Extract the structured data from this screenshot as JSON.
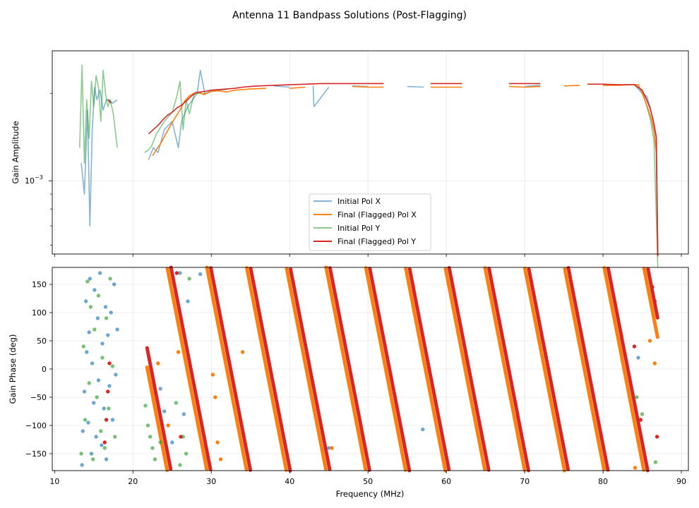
{
  "chart_data": {
    "title": "Antenna 11 Bandpass Solutions (Post-Flagging)",
    "type": "line",
    "colors": {
      "initial_x": "#1f77b4",
      "final_x": "#ff7f0e",
      "initial_y": "#2ca02c",
      "final_y": "#d62728"
    },
    "x_axis": {
      "label": "Frequency (MHz)",
      "range": [
        9.7,
        90.9
      ],
      "ticks": [
        10,
        20,
        30,
        40,
        50,
        60,
        70,
        80,
        90
      ],
      "tick_labels": [
        "10",
        "20",
        "30",
        "40",
        "50",
        "60",
        "70",
        "80",
        "90"
      ]
    },
    "amplitude_panel": {
      "ylabel": "Gain Amplitude",
      "yscale": "log",
      "ylim": [
        0.00056,
        0.0028
      ],
      "ytick_label": "10",
      "ytick_exponent": "−3",
      "legend_position": "lower-center",
      "series": [
        {
          "name": "Initial Pol X",
          "key": "initial_x",
          "alpha": 0.55,
          "x": [
            13.4,
            13.8,
            14.2,
            14.5,
            14.8,
            15.1,
            15.4,
            15.8,
            16.2,
            16.6,
            17.0,
            17.4,
            18.0,
            22.0,
            22.6,
            23.2,
            24.0,
            25.0,
            25.8,
            26.2,
            26.6,
            27.0,
            27.6,
            28.2,
            28.6,
            29.2,
            30.0,
            32.0,
            35.0,
            38.0,
            40.0,
            43.0,
            43.1,
            45.0,
            48.0,
            50.0,
            55.0,
            57.1,
            60.0,
            65.0,
            70.0,
            72.0,
            75.0,
            80.0,
            83.0,
            84.0,
            85.0,
            85.6,
            86.0,
            86.3,
            86.6,
            86.8,
            87.0
          ],
          "values": [
            0.00115,
            0.0009,
            0.00175,
            0.0007,
            0.0015,
            0.0021,
            0.0019,
            0.00205,
            0.00175,
            0.0019,
            0.0019,
            0.00185,
            0.0019,
            0.00118,
            0.0013,
            0.00125,
            0.0015,
            0.0016,
            0.0013,
            0.0016,
            0.0017,
            0.0018,
            0.0019,
            0.002,
            0.0024,
            0.00198,
            0.00205,
            0.00206,
            0.00212,
            0.00212,
            0.0021,
            0.00212,
            0.0018,
            0.0021,
            0.00212,
            0.00211,
            0.00211,
            0.0021,
            0.00212,
            0.00212,
            0.00211,
            0.00213,
            0.00213,
            0.00214,
            0.00214,
            0.00214,
            0.002,
            0.00195,
            0.0018,
            0.00165,
            0.0015,
            0.0014,
            0.00055
          ]
        },
        {
          "name": "Final (Flagged) Pol X",
          "key": "final_x",
          "alpha": 1.0,
          "x": [
            22.5,
            23.0,
            23.6,
            24.2,
            24.8,
            25.4,
            26.0,
            26.6,
            27.2,
            27.8,
            28.4,
            29.0,
            30.0,
            31.0,
            32.0,
            33.0,
            34.0,
            35.0,
            37.0,
            40.0,
            42.0,
            45.0,
            48.0,
            50.0,
            52.0,
            55.0,
            58.0,
            60.0,
            62.0,
            65.0,
            68.0,
            70.0,
            72.0,
            75.0,
            77.0,
            80.0,
            82.0,
            83.5,
            84.5,
            85.0,
            85.4,
            85.8,
            86.2,
            86.5,
            86.8,
            87.0
          ],
          "values": [
            0.00122,
            0.00128,
            0.00135,
            0.00145,
            0.00155,
            0.00165,
            0.00175,
            0.00188,
            0.00196,
            0.002,
            0.00202,
            0.00198,
            0.00203,
            0.00204,
            0.00202,
            0.00205,
            0.00206,
            0.00207,
            0.00208,
            0.00208,
            0.0021,
            0.00211,
            0.00211,
            0.0021,
            0.0021,
            0.00211,
            0.0021,
            0.0021,
            0.0021,
            0.0021,
            0.00211,
            0.0021,
            0.00211,
            0.00212,
            0.00213,
            0.00213,
            0.00213,
            0.00214,
            0.00214,
            0.002,
            0.00188,
            0.00175,
            0.00162,
            0.00148,
            0.00125,
            0.00055
          ]
        },
        {
          "name": "Initial Pol Y",
          "key": "initial_y",
          "alpha": 0.55,
          "x": [
            13.2,
            13.5,
            13.8,
            14.1,
            14.4,
            14.7,
            15.0,
            15.3,
            15.6,
            15.9,
            16.2,
            16.5,
            16.8,
            17.1,
            17.5,
            18.0,
            21.5,
            22.0,
            22.4,
            23.0,
            24.0,
            25.0,
            25.6,
            26.0,
            26.4,
            26.8,
            27.2,
            27.8,
            28.4,
            29.0,
            30.0,
            35.0,
            40.0,
            45.0,
            50.0,
            55.0,
            60.0,
            65.0,
            70.0,
            75.0,
            80.0,
            84.0,
            85.0,
            86.0,
            86.5,
            87.0
          ],
          "values": [
            0.0013,
            0.0025,
            0.00115,
            0.0019,
            0.0014,
            0.0022,
            0.0018,
            0.0023,
            0.0021,
            0.0016,
            0.0024,
            0.002,
            0.0018,
            0.0019,
            0.0017,
            0.0013,
            0.00125,
            0.00128,
            0.00132,
            0.00145,
            0.0016,
            0.00172,
            0.00195,
            0.0022,
            0.0015,
            0.0019,
            0.0017,
            0.00198,
            0.002,
            0.00199,
            0.00203,
            0.0021,
            0.00213,
            0.00214,
            0.00214,
            0.00214,
            0.00214,
            0.00214,
            0.00214,
            0.00214,
            0.00215,
            0.00215,
            0.00205,
            0.00165,
            0.00138,
            0.0005
          ]
        },
        {
          "name": "Final (Flagged) Pol Y",
          "key": "final_y",
          "alpha": 1.0,
          "x": [
            16.8,
            17.2,
            22.0,
            22.6,
            23.2,
            23.8,
            24.4,
            25.0,
            25.6,
            26.2,
            26.8,
            27.4,
            28.0,
            28.6,
            29.2,
            30.0,
            31.0,
            32.0,
            33.0,
            34.0,
            35.0,
            36.0,
            38.0,
            40.0,
            42.0,
            44.0,
            46.0,
            48.0,
            50.0,
            52.0,
            55.0,
            58.0,
            60.0,
            62.0,
            65.0,
            68.0,
            70.0,
            72.0,
            75.0,
            78.0,
            80.0,
            82.0,
            84.0,
            85.0,
            85.5,
            86.0,
            86.4,
            86.8,
            87.0
          ],
          "values": [
            0.0019,
            0.00185,
            0.00145,
            0.0015,
            0.00155,
            0.00162,
            0.00168,
            0.00172,
            0.00178,
            0.00182,
            0.00188,
            0.00195,
            0.00201,
            0.00202,
            0.00203,
            0.00205,
            0.00206,
            0.00207,
            0.00208,
            0.0021,
            0.00211,
            0.00212,
            0.00213,
            0.00214,
            0.00215,
            0.00216,
            0.00216,
            0.00216,
            0.00216,
            0.00216,
            0.00216,
            0.00216,
            0.00216,
            0.00216,
            0.00216,
            0.00216,
            0.00216,
            0.00216,
            0.00216,
            0.00215,
            0.00215,
            0.00214,
            0.00214,
            0.00205,
            0.00192,
            0.00178,
            0.00162,
            0.00142,
            0.00055
          ]
        }
      ]
    },
    "phase_panel": {
      "ylabel": "Gain Phase (deg)",
      "ylim": [
        -180,
        180
      ],
      "yticks": [
        150,
        100,
        50,
        0,
        -50,
        -100,
        -150
      ],
      "ytick_labels": [
        "150",
        "100",
        "50",
        "0",
        "−50",
        "−100",
        "−150"
      ],
      "phase_wrap": {
        "slope_deg_per_mhz": -71.0,
        "offset_deg": 145.0,
        "valid_from_mhz": 21.8,
        "valid_to_mhz": 87.0
      },
      "series": [
        {
          "name": "Initial Pol X",
          "key": "initial_x",
          "style": "scatter",
          "x": [
            13.5,
            13.6,
            13.8,
            14.0,
            14.1,
            14.3,
            14.4,
            14.5,
            14.7,
            14.8,
            15.0,
            15.1,
            15.3,
            15.5,
            15.6,
            15.8,
            16.0,
            16.1,
            16.3,
            16.5,
            16.6,
            16.8,
            17.0,
            17.2,
            17.4,
            17.6,
            17.8,
            18.0,
            23.5,
            24.0,
            25.0,
            26.0,
            26.5,
            27.0,
            28.6,
            45.0,
            57.0,
            84.5
          ],
          "values": [
            -170,
            -110,
            -40,
            120,
            30,
            -95,
            65,
            160,
            -150,
            10,
            -60,
            140,
            -120,
            90,
            -20,
            170,
            -135,
            45,
            -70,
            110,
            -160,
            60,
            -30,
            100,
            -90,
            150,
            -10,
            70,
            -35,
            -75,
            -130,
            170,
            -80,
            120,
            168,
            -140,
            -107,
            20
          ]
        },
        {
          "name": "Final (Flagged) Pol X",
          "key": "final_x",
          "style": "scatter",
          "x": [
            23.2,
            24.5,
            25.8,
            30.2,
            30.5,
            30.8,
            31.2,
            34.0,
            45.4,
            84.1,
            86.0,
            86.6
          ],
          "values": [
            10,
            -100,
            30,
            -10,
            -50,
            -130,
            -160,
            30,
            -140,
            -175,
            50,
            10
          ]
        },
        {
          "name": "Initial Pol Y",
          "key": "initial_y",
          "style": "scatter",
          "x": [
            13.4,
            13.7,
            13.9,
            14.2,
            14.4,
            14.6,
            14.9,
            15.1,
            15.4,
            15.6,
            15.9,
            16.1,
            16.4,
            16.6,
            16.9,
            17.1,
            17.4,
            17.7,
            21.6,
            21.9,
            22.2,
            22.5,
            22.8,
            23.5,
            25.5,
            26.0,
            26.4,
            26.8,
            27.2,
            84.3,
            85.0,
            86.7
          ],
          "values": [
            -150,
            40,
            -90,
            155,
            -25,
            110,
            -160,
            70,
            -50,
            130,
            -110,
            20,
            -140,
            90,
            -70,
            160,
            5,
            -120,
            -65,
            -100,
            -120,
            -140,
            -160,
            -130,
            -60,
            -170,
            -120,
            -150,
            160,
            -50,
            -80,
            -165
          ]
        },
        {
          "name": "Final (Flagged) Pol Y",
          "key": "final_y",
          "style": "scatter",
          "x": [
            16.4,
            16.6,
            16.8,
            17.0,
            25.6,
            26.1,
            84.0,
            84.8,
            86.3,
            86.6,
            86.9
          ],
          "values": [
            -130,
            -90,
            -40,
            10,
            170,
            -120,
            40,
            -90,
            145,
            120,
            -120
          ]
        }
      ]
    }
  }
}
